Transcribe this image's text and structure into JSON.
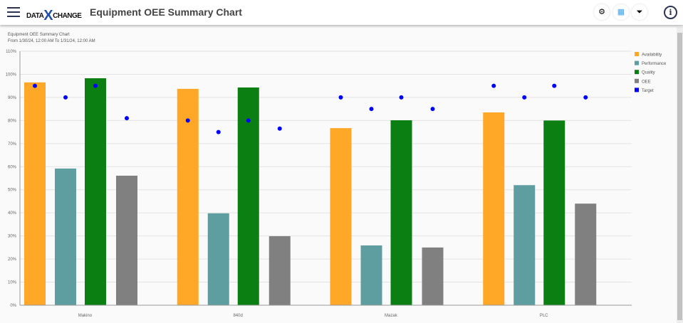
{
  "header": {
    "title": "Equipment OEE Summary Chart",
    "logo": "DATA X CHANGE",
    "icons": [
      "gear-icon",
      "grid-icon",
      "filter-icon",
      "info-icon"
    ]
  },
  "chart_data": {
    "type": "bar",
    "title": "Equipment OEE Summary Chart",
    "subtitle": "From 1/30/24, 12:00 AM To 1/31/24, 12:00 AM",
    "categories": [
      "Makino",
      "840d",
      "Mazak",
      "PLC"
    ],
    "ylim": [
      0,
      110
    ],
    "yticks": [
      "0%",
      "10%",
      "20%",
      "30%",
      "40%",
      "50%",
      "60%",
      "70%",
      "80%",
      "90%",
      "100%",
      "110%"
    ],
    "grid": true,
    "legend_position": "right",
    "series": [
      {
        "name": "Availability",
        "color": "#ffa726",
        "values": [
          96.5,
          93.7,
          76.7,
          83.5
        ]
      },
      {
        "name": "Performance",
        "color": "#5f9ea0",
        "values": [
          59.2,
          39.8,
          25.9,
          52
        ]
      },
      {
        "name": "Quality",
        "color": "#0b7f12",
        "values": [
          98.3,
          94.3,
          80.1,
          80
        ]
      },
      {
        "name": "OEE",
        "color": "#808080",
        "values": [
          56.1,
          29.9,
          25,
          44
        ]
      }
    ],
    "target": {
      "name": "Target",
      "color": "#0000ff",
      "values": [
        [
          95,
          90,
          95,
          81
        ],
        [
          80,
          75,
          80,
          76.5
        ],
        [
          90,
          85,
          90,
          85
        ],
        [
          95,
          90,
          95,
          90
        ]
      ]
    }
  }
}
